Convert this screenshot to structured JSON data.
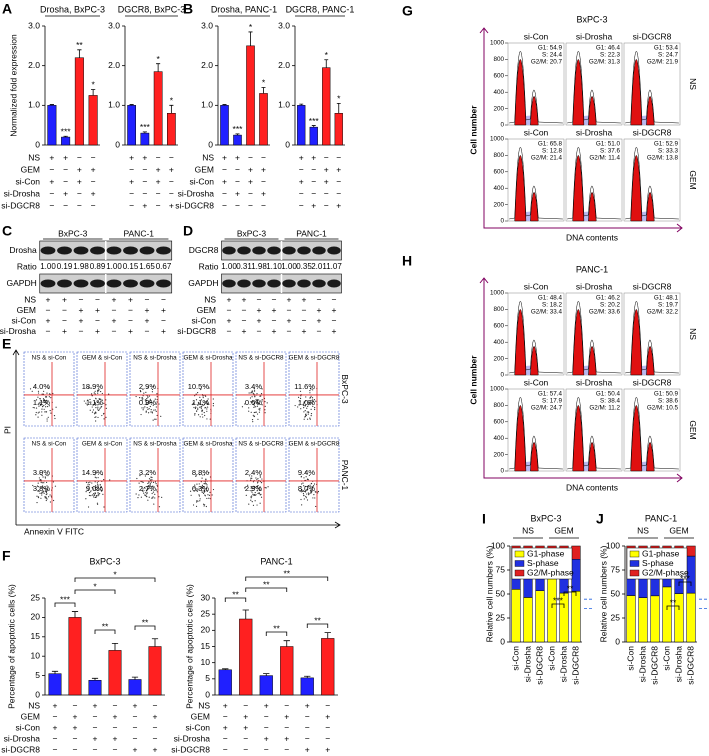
{
  "panel_labels": [
    "A",
    "B",
    "C",
    "D",
    "E",
    "F",
    "G",
    "H",
    "I",
    "J"
  ],
  "chart_data": [
    {
      "type": "bar",
      "title": "Drosha, BxPC-3",
      "y_label": "Normalized fold expression",
      "values": [
        1.0,
        0.2,
        2.2,
        1.25
      ],
      "errors": [
        0.02,
        0.02,
        0.2,
        0.15
      ],
      "colors": [
        "#2020ff",
        "#2020ff",
        "#ff2020",
        "#ff2020"
      ],
      "annotations": [
        null,
        "***",
        "**",
        "*"
      ],
      "ylim": [
        0,
        3
      ],
      "yticks": [
        0,
        {
          "value": 1,
          "label": "1.0"
        },
        {
          "value": 2,
          "label": "2.0"
        },
        {
          "value": 3,
          "label": "3.0"
        }
      ]
    },
    {
      "type": "bar",
      "title": "DGCR8, BxPC-3",
      "values": [
        1.0,
        0.3,
        1.85,
        0.8
      ],
      "errors": [
        0.02,
        0.03,
        0.2,
        0.2
      ],
      "colors": [
        "#2020ff",
        "#2020ff",
        "#ff2020",
        "#ff2020"
      ],
      "annotations": [
        null,
        "***",
        "*",
        "*"
      ],
      "ylim": [
        0,
        3
      ],
      "yticks": [
        0,
        {
          "value": 1,
          "label": "1.0"
        },
        {
          "value": 2,
          "label": "2.0"
        },
        {
          "value": 3,
          "label": "3.0"
        }
      ]
    },
    {
      "type": "bar",
      "title": "Drosha, PANC-1",
      "values": [
        1.0,
        0.25,
        2.5,
        1.3
      ],
      "errors": [
        0.02,
        0.03,
        0.35,
        0.15
      ],
      "colors": [
        "#2020ff",
        "#2020ff",
        "#ff2020",
        "#ff2020"
      ],
      "annotations": [
        null,
        "***",
        "*",
        "*"
      ],
      "ylim": [
        0,
        3
      ],
      "yticks": [
        0,
        {
          "value": 1,
          "label": "1.0"
        },
        {
          "value": 2,
          "label": "2.0"
        },
        {
          "value": 3,
          "label": "3.0"
        }
      ]
    },
    {
      "type": "bar",
      "title": "DGCR8, PANC-1",
      "values": [
        1.0,
        0.45,
        1.95,
        0.8
      ],
      "errors": [
        0.03,
        0.04,
        0.2,
        0.25
      ],
      "colors": [
        "#2020ff",
        "#2020ff",
        "#ff2020",
        "#ff2020"
      ],
      "annotations": [
        null,
        "***",
        "*",
        "*"
      ],
      "ylim": [
        0,
        3
      ],
      "yticks": [
        0,
        {
          "value": 1,
          "label": "1.0"
        },
        {
          "value": 2,
          "label": "2.0"
        },
        {
          "value": 3,
          "label": "3.0"
        }
      ]
    },
    {
      "type": "bar",
      "title": "BxPC-3",
      "y_label": "Percentage of apoptotic cells (%)",
      "values": [
        5.5,
        20,
        3.8,
        11.5,
        4,
        12.5
      ],
      "errors": [
        0.6,
        1.5,
        0.5,
        1.8,
        0.6,
        2
      ],
      "colors": [
        "#2020ff",
        "#ff2020",
        "#2020ff",
        "#ff2020",
        "#2020ff",
        "#ff2020"
      ],
      "annotations": [
        "***",
        "*",
        "*",
        "**",
        "**"
      ],
      "ylim": [
        0,
        25
      ],
      "yticks": [
        0,
        5,
        10,
        15,
        20,
        25
      ]
    },
    {
      "type": "bar",
      "title": "PANC-1",
      "y_label": "Percentage of apoptotic cells (%)",
      "values": [
        7.8,
        23.5,
        6,
        15,
        5.3,
        17.5
      ],
      "errors": [
        0.3,
        2.8,
        0.6,
        1.8,
        0.5,
        1.8
      ],
      "colors": [
        "#2020ff",
        "#ff2020",
        "#2020ff",
        "#ff2020",
        "#2020ff",
        "#ff2020"
      ],
      "annotations": [
        "**",
        "**",
        "**",
        "**",
        "**"
      ],
      "ylim": [
        0,
        30
      ],
      "yticks": [
        0,
        5,
        10,
        15,
        20,
        25,
        30
      ]
    },
    {
      "type": "stacked_bar",
      "title": "BxPC-3",
      "y_label": "Relative cell numbers (%)",
      "groups": [
        "NS",
        "GEM"
      ],
      "categories": [
        "si-Con",
        "si-Drosha",
        "si-DGCR8",
        "si-Con",
        "si-Drosha",
        "si-DGCR8"
      ],
      "series": [
        {
          "name": "G1-phase",
          "color": "#ffff00",
          "values": [
            54.9,
            46.4,
            53.4,
            65.8,
            51.0,
            52.9
          ]
        },
        {
          "name": "S-phase",
          "color": "#2030e0",
          "values": [
            24.4,
            22.3,
            24.7,
            12.8,
            37.6,
            33.3
          ]
        },
        {
          "name": "G2/M-phase",
          "color": "#e02020",
          "values": [
            20.7,
            31.3,
            21.9,
            21.4,
            11.4,
            13.8
          ]
        }
      ],
      "annotations": [
        "***",
        "**"
      ],
      "ylim": [
        0,
        100
      ],
      "yticks": [
        0,
        25,
        50,
        75,
        100
      ]
    },
    {
      "type": "stacked_bar",
      "title": "PANC-1",
      "y_label": "Relative cell numbers (%)",
      "groups": [
        "NS",
        "GEM"
      ],
      "categories": [
        "si-Con",
        "si-Drosha",
        "si-DGCR8",
        "si-Con",
        "si-Drosha",
        "si-DGCR8"
      ],
      "series": [
        {
          "name": "G1-phase",
          "color": "#ffff00",
          "values": [
            48.4,
            46.2,
            48.1,
            57.4,
            50.4,
            50.9
          ]
        },
        {
          "name": "S-phase",
          "color": "#2030e0",
          "values": [
            18.2,
            20.2,
            19.7,
            17.9,
            38.4,
            38.6
          ]
        },
        {
          "name": "G2/M-phase",
          "color": "#e02020",
          "values": [
            33.4,
            33.6,
            32.2,
            24.7,
            11.2,
            10.5
          ]
        }
      ],
      "annotations": [
        "**",
        "***"
      ],
      "ylim": [
        0,
        100
      ],
      "yticks": [
        0,
        25,
        50,
        75,
        100
      ]
    }
  ],
  "conditions": [
    {
      "rows": [
        {
          "label": "NS",
          "signs": [
            "+",
            "+",
            "−",
            "−",
            "+",
            "+",
            "−",
            "−"
          ]
        },
        {
          "label": "GEM",
          "signs": [
            "−",
            "−",
            "+",
            "+",
            "−",
            "−",
            "+",
            "+"
          ]
        },
        {
          "label": "si-Con",
          "signs": [
            "+",
            "−",
            "+",
            "−",
            "+",
            "−",
            "+",
            "−"
          ]
        },
        {
          "label": "si-Drosha",
          "signs": [
            "−",
            "+",
            "−",
            "+",
            "−",
            "−",
            "−",
            "−"
          ]
        },
        {
          "label": "si-DGCR8",
          "signs": [
            "−",
            "−",
            "−",
            "−",
            "−",
            "+",
            "−",
            "+"
          ]
        }
      ]
    },
    {
      "rows": [
        {
          "label": "NS",
          "signs": [
            "+",
            "+",
            "−",
            "−",
            "+",
            "+",
            "−",
            "−"
          ]
        },
        {
          "label": "GEM",
          "signs": [
            "−",
            "−",
            "+",
            "+",
            "−",
            "−",
            "+",
            "+"
          ]
        },
        {
          "label": "si-Con",
          "signs": [
            "+",
            "−",
            "+",
            "−",
            "+",
            "−",
            "+",
            "−"
          ]
        },
        {
          "label": "si-Drosha",
          "signs": [
            "−",
            "+",
            "−",
            "+",
            "−",
            "−",
            "−",
            "−"
          ]
        },
        {
          "label": "si-DGCR8",
          "signs": [
            "−",
            "−",
            "−",
            "−",
            "−",
            "+",
            "−",
            "+"
          ]
        }
      ]
    },
    {
      "rows": [
        {
          "label": "NS",
          "signs": [
            "+",
            "+",
            "−",
            "−",
            "+",
            "+",
            "−",
            "−"
          ]
        },
        {
          "label": "GEM",
          "signs": [
            "−",
            "−",
            "+",
            "+",
            "−",
            "−",
            "+",
            "+"
          ]
        },
        {
          "label": "si-Con",
          "signs": [
            "+",
            "−",
            "+",
            "−",
            "+",
            "−",
            "+",
            "−"
          ]
        },
        {
          "label": "si-Drosha",
          "signs": [
            "−",
            "+",
            "−",
            "+",
            "−",
            "+",
            "−",
            "+"
          ]
        }
      ]
    },
    {
      "rows": [
        {
          "label": "NS",
          "signs": [
            "+",
            "+",
            "−",
            "−",
            "+",
            "+",
            "−",
            "−"
          ]
        },
        {
          "label": "GEM",
          "signs": [
            "−",
            "−",
            "+",
            "+",
            "−",
            "−",
            "+",
            "+"
          ]
        },
        {
          "label": "si-Con",
          "signs": [
            "+",
            "−",
            "+",
            "−",
            "+",
            "−",
            "+",
            "−"
          ]
        },
        {
          "label": "si-DGCR8",
          "signs": [
            "−",
            "+",
            "−",
            "+",
            "−",
            "+",
            "−",
            "+"
          ]
        }
      ]
    },
    {
      "rows": [
        {
          "label": "NS",
          "signs": [
            "+",
            "−",
            "+",
            "−",
            "+",
            "−"
          ]
        },
        {
          "label": "GEM",
          "signs": [
            "−",
            "+",
            "−",
            "+",
            "−",
            "+"
          ]
        },
        {
          "label": "si-Con",
          "signs": [
            "+",
            "+",
            "−",
            "−",
            "−",
            "−"
          ]
        },
        {
          "label": "si-Drosha",
          "signs": [
            "−",
            "−",
            "+",
            "+",
            "−",
            "−"
          ]
        },
        {
          "label": "si-DGCR8",
          "signs": [
            "−",
            "−",
            "−",
            "−",
            "+",
            "+"
          ]
        }
      ]
    },
    {
      "rows": [
        {
          "label": "NS",
          "signs": [
            "+",
            "−",
            "+",
            "−",
            "+",
            "−"
          ]
        },
        {
          "label": "GEM",
          "signs": [
            "−",
            "+",
            "−",
            "+",
            "−",
            "+"
          ]
        },
        {
          "label": "si-Con",
          "signs": [
            "+",
            "+",
            "−",
            "−",
            "−",
            "−"
          ]
        },
        {
          "label": "si-Drosha",
          "signs": [
            "−",
            "−",
            "+",
            "+",
            "−",
            "−"
          ]
        },
        {
          "label": "si-DGCR8",
          "signs": [
            "−",
            "−",
            "−",
            "−",
            "+",
            "+"
          ]
        }
      ]
    }
  ],
  "blots": [
    {
      "groups": [
        "BxPC-3",
        "PANC-1"
      ],
      "target": "Drosha",
      "ratio_label": "Ratio",
      "ratios": [
        "1.00",
        "0.19",
        "1.98",
        "0.89",
        "1.00",
        "0.15",
        "1.65",
        "0.67"
      ],
      "control": "GAPDH"
    },
    {
      "groups": [
        "BxPC-3",
        "PANC-1"
      ],
      "target": "DGCR8",
      "ratio_label": "Ratio",
      "ratios": [
        "1.00",
        "0.31",
        "1.98",
        "1.10",
        "1.00",
        "0.35",
        "2.01",
        "1.07"
      ],
      "control": "GAPDH"
    }
  ],
  "flow": {
    "y_label": "PI",
    "x_label": "Annexin V FITC",
    "rows": [
      {
        "label": "BxPC-3",
        "plots": [
          {
            "title": "NS & si-Con",
            "upper": "4.0%",
            "lower": "1.1%"
          },
          {
            "title": "GEM & si-Con",
            "upper": "18.9%",
            "lower": "1.1%"
          },
          {
            "title": "NS & si-Drosha",
            "upper": "2.9%",
            "lower": "0.9%"
          },
          {
            "title": "GEM & si-Drosha",
            "upper": "10.5%",
            "lower": "1.1%"
          },
          {
            "title": "NS & si-DGCR8",
            "upper": "3.4%",
            "lower": "0.6%"
          },
          {
            "title": "GEM & si-DGCR8",
            "upper": "11.6%",
            "lower": "1.0%"
          }
        ]
      },
      {
        "label": "PANC-1",
        "plots": [
          {
            "title": "NS & si-Con",
            "upper": "3.9%",
            "lower": "3.8%"
          },
          {
            "title": "GEM & si-Con",
            "upper": "14.9%",
            "lower": "9.0%"
          },
          {
            "title": "NS & si-Drosha",
            "upper": "3.2%",
            "lower": "2.7%"
          },
          {
            "title": "GEM & si-Drosha",
            "upper": "8.8%",
            "lower": "6.3%"
          },
          {
            "title": "NS & si-DGCR8",
            "upper": "2.4%",
            "lower": "2.9%"
          },
          {
            "title": "GEM & si-DGCR8",
            "upper": "9.4%",
            "lower": "8.0%"
          }
        ]
      }
    ]
  },
  "cell_cycle": [
    {
      "title": "BxPC-3",
      "y_label": "Cell number",
      "x_label": "DNA contents",
      "yticks": [
        "0",
        "200",
        "400",
        "600",
        "800",
        "1000"
      ],
      "rows": [
        {
          "label": "NS",
          "cells": [
            {
              "label": "si-Con",
              "stats": [
                "G1: 54.9",
                "S: 24.4",
                "G2/M: 20.7"
              ]
            },
            {
              "label": "si-Drosha",
              "stats": [
                "G1: 46.4",
                "S: 22.3",
                "G2/M: 31.3"
              ]
            },
            {
              "label": "si-DGCR8",
              "stats": [
                "G1: 53.4",
                "S: 24.7",
                "G2/M: 21.9"
              ]
            }
          ]
        },
        {
          "label": "GEM",
          "cells": [
            {
              "label": "si-Con",
              "stats": [
                "G1: 65.8",
                "S: 12.8",
                "G2/M: 21.4"
              ]
            },
            {
              "label": "si-Drosha",
              "stats": [
                "G1: 51.0",
                "S: 37.6",
                "G2/M: 11.4"
              ]
            },
            {
              "label": "si-DGCR8",
              "stats": [
                "G1: 52.9",
                "S: 33.3",
                "G2/M: 13.8"
              ]
            }
          ]
        }
      ]
    },
    {
      "title": "PANC-1",
      "y_label": "Cell number",
      "x_label": "DNA contents",
      "yticks": [
        "0",
        "200",
        "400",
        "600",
        "800",
        "1000"
      ],
      "rows": [
        {
          "label": "NS",
          "cells": [
            {
              "label": "si-Con",
              "stats": [
                "G1: 48.4",
                "S: 18.2",
                "G2/M: 33.4"
              ]
            },
            {
              "label": "si-Drosha",
              "stats": [
                "G1: 46.2",
                "S: 20.2",
                "G2/M: 33.6"
              ]
            },
            {
              "label": "si-DGCR8",
              "stats": [
                "G1: 48.1",
                "S: 19.7",
                "G2/M: 32.2"
              ]
            }
          ]
        },
        {
          "label": "GEM",
          "cells": [
            {
              "label": "si-Con",
              "stats": [
                "G1: 57.4",
                "S: 17.9",
                "G2/M: 24.7"
              ]
            },
            {
              "label": "si-Drosha",
              "stats": [
                "G1: 50.4",
                "S: 38.4",
                "G2/M: 11.2"
              ]
            },
            {
              "label": "si-DGCR8",
              "stats": [
                "G1: 50.9",
                "S: 38.6",
                "G2/M: 10.5"
              ]
            }
          ]
        }
      ]
    }
  ]
}
